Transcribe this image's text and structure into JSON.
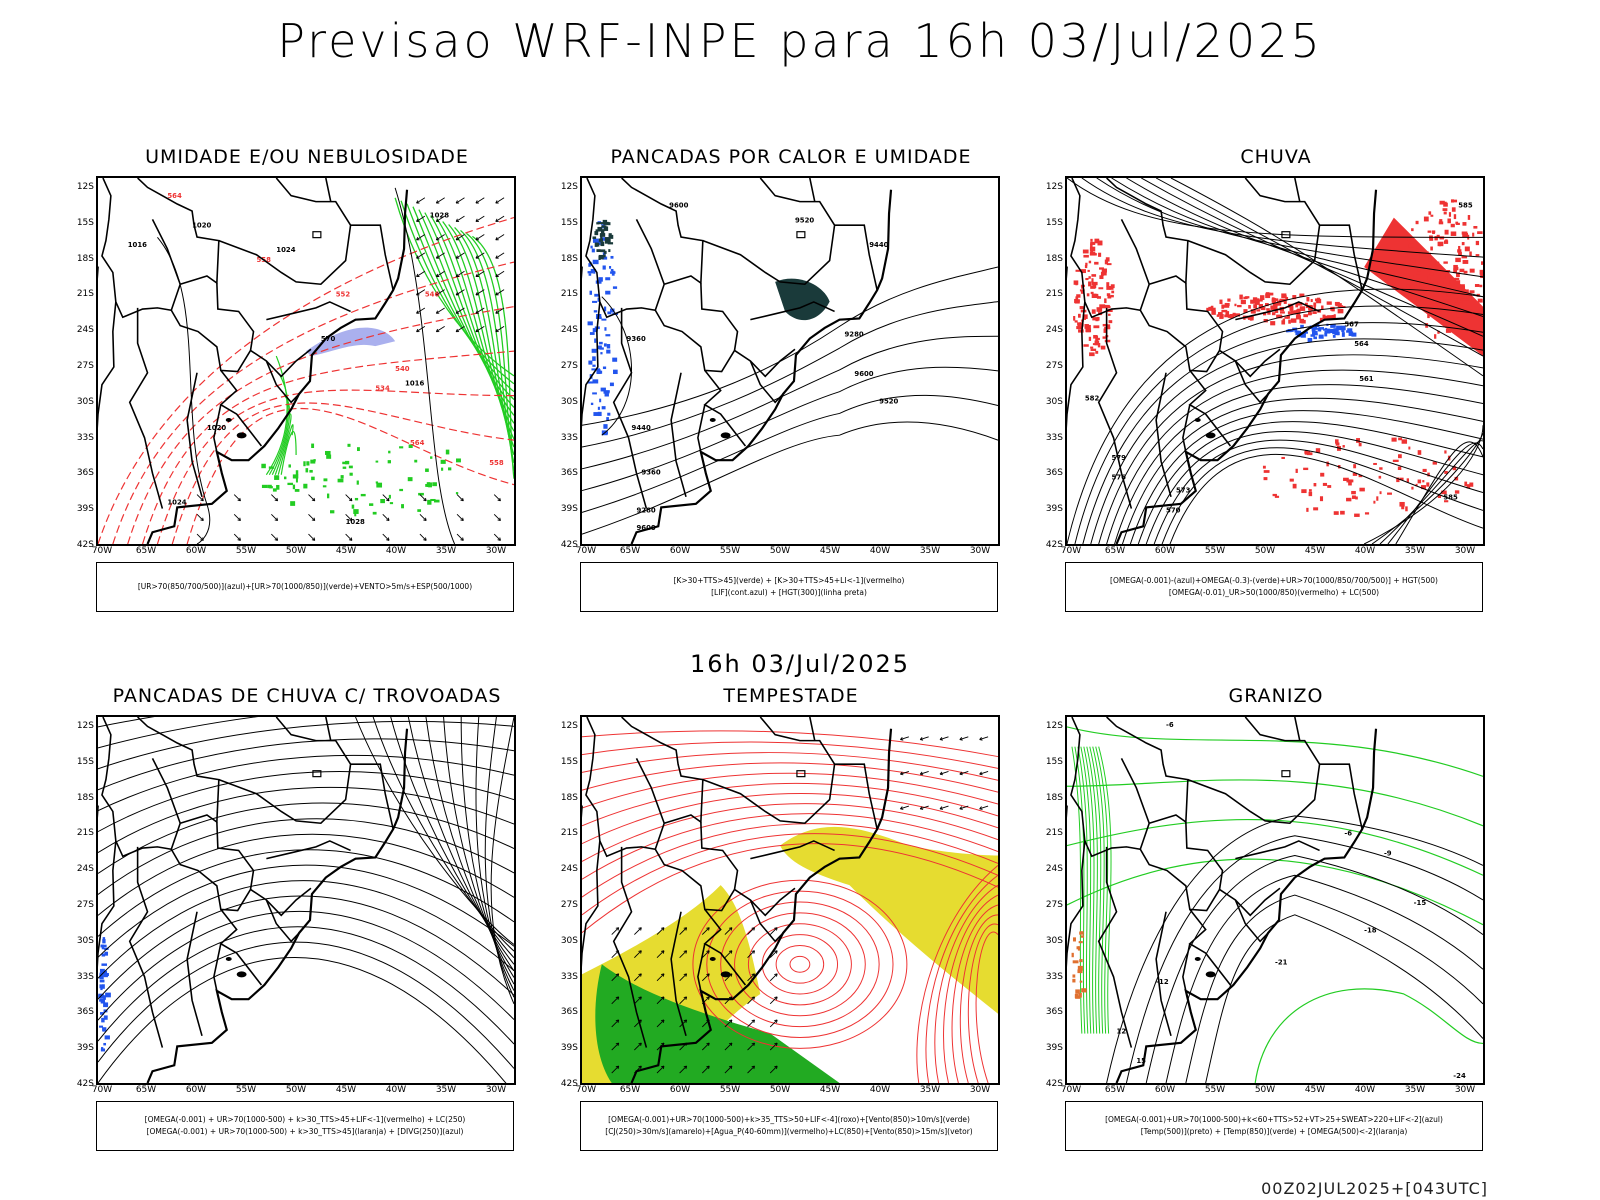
{
  "title": "Previsao WRF-INPE  para 16h 03/Jul/2025",
  "mid_time": "16h 03/Jul/2025",
  "footer": "00Z02JUL2025+[043UTC]",
  "lat_ticks": [
    "12S",
    "15S",
    "18S",
    "21S",
    "24S",
    "27S",
    "30S",
    "33S",
    "36S",
    "39S",
    "42S"
  ],
  "lon_ticks": [
    "70W",
    "65W",
    "60W",
    "55W",
    "50W",
    "45W",
    "40W",
    "35W",
    "30W"
  ],
  "colors": {
    "humidity_green": "#22cc22",
    "high_humidity_blue": "#aab0ee",
    "thickness_red": "#ee3333",
    "omega_blue": "#2255ee",
    "thunder_yellow": "#e6dc30",
    "storm_green": "#22aa22",
    "convective_teal": "#1a3a3a",
    "contour_black": "#000000"
  },
  "panels": [
    {
      "title": "UMIDADE E/OU NEBULOSIDADE",
      "caption_lines": [
        "[UR>70(850/700/500)](azul)+[UR>70(1000/850)](verde)+VENTO>5m/s+ESP(500/1000)"
      ],
      "contour_labels": [
        "1016",
        "1020",
        "1024",
        "1028",
        "570",
        "564",
        "558",
        "552",
        "546",
        "540",
        "534"
      ]
    },
    {
      "title": "PANCADAS POR CALOR E UMIDADE",
      "caption_lines": [
        "[K>30+TTS>45](verde) + [K>30+TTS>45+LI<-1](vermelho)",
        "[LIF](cont.azul) + [HGT(300)](linha preta)"
      ],
      "contour_labels": [
        "9600",
        "9520",
        "9440",
        "9360",
        "9280"
      ]
    },
    {
      "title": "CHUVA",
      "caption_lines": [
        "[OMEGA(-0.001)-(azul)+OMEGA(-0.3)-(verde)+UR>70(1000/850/700/500)] + HGT(500)",
        "[OMEGA(-0.01)_UR>50(1000/850)(vermelho) + LC(500)"
      ],
      "contour_labels": [
        "585",
        "582",
        "579",
        "576",
        "573",
        "570",
        "567",
        "564",
        "561"
      ]
    },
    {
      "title": "PANCADAS DE CHUVA C/ TROVOADAS",
      "caption_lines": [
        "[OMEGA(-0.001) + UR>70(1000-500) + k>30_TTS>45+LIF<-1](vermelho) + LC(250)",
        "[OMEGA(-0.001) + UR>70(1000-500) + k>30_TTS>45](laranja) + [DIVG(250)](azul)"
      ],
      "contour_labels": []
    },
    {
      "title": "TEMPESTADE",
      "caption_lines": [
        "[OMEGA(-0.001)+UR>70(1000-500)+k>35_TTS>50+LIF<-4](roxo)+[Vento(850)>10m/s](verde)",
        "[CJ(250)>30m/s](amarelo)+[Agua_P(40-60mm)](vermelho)+LC(850)+[Vento(850)>15m/s](vetor)"
      ],
      "contour_labels": []
    },
    {
      "title": "GRANIZO",
      "caption_lines": [
        "[OMEGA(-0.001)+UR>70(1000-500)+k<60+TTS>52+VT>25+SWEAT>220+LIF<-2](azul)",
        "[Temp(500)](preto) + [Temp(850)](verde) + [OMEGA(500)<-2](laranja)"
      ],
      "contour_labels": [
        "-6",
        "-9",
        "-12",
        "-15",
        "-18",
        "-21",
        "-24",
        "12",
        "15"
      ]
    }
  ]
}
